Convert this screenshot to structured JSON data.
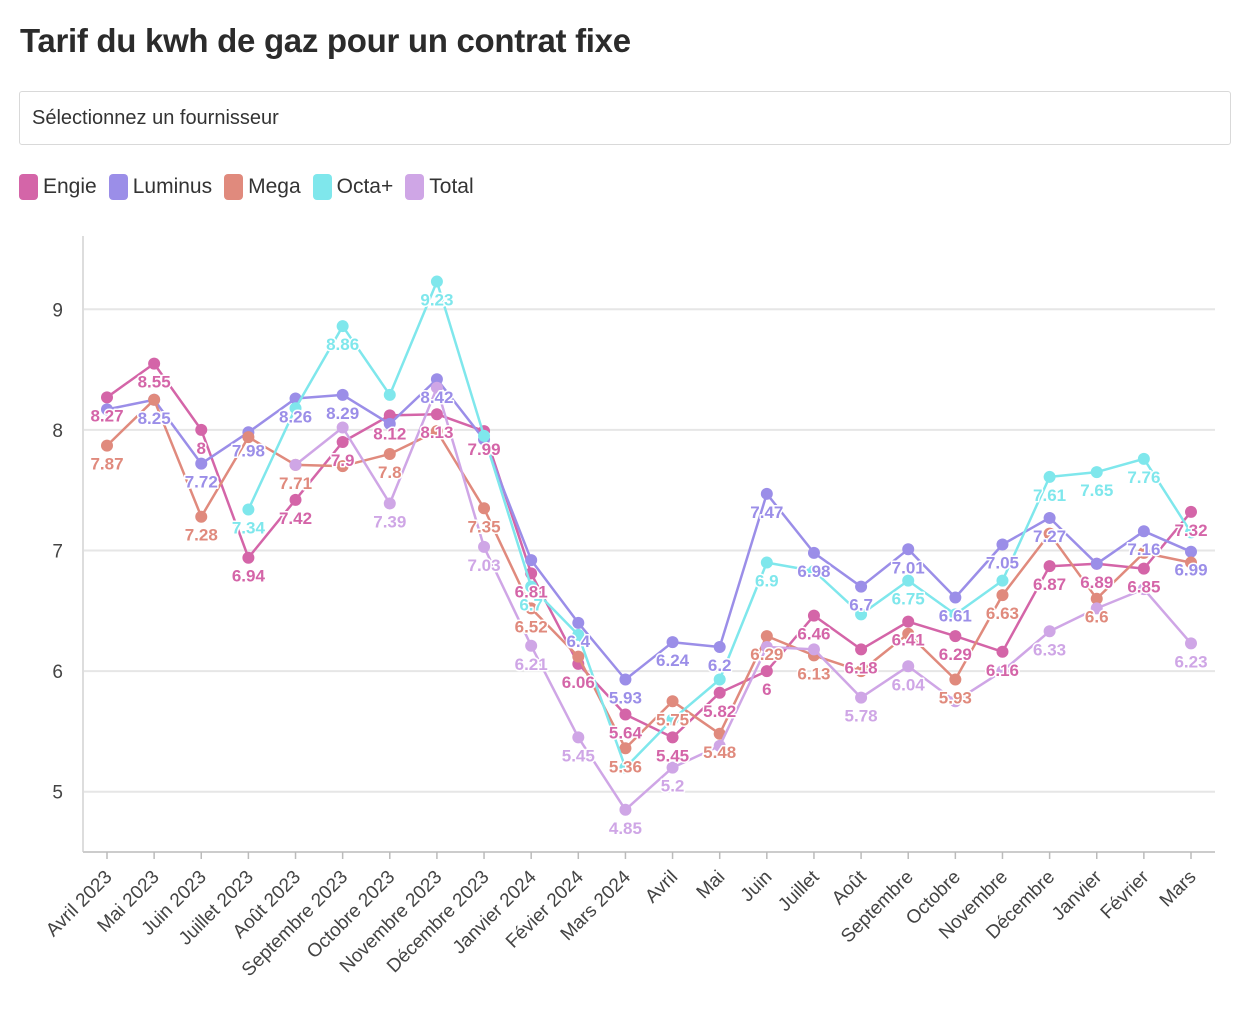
{
  "title": "Tarif du kwh de gaz pour un contrat fixe",
  "select": {
    "placeholder": "Sélectionnez un fournisseur"
  },
  "chart_data": {
    "type": "line",
    "title": "Tarif du kwh de gaz pour un contrat fixe",
    "xlabel": "",
    "ylabel": "",
    "ylim": [
      4.5,
      9.5
    ],
    "yticks": [
      5,
      6,
      7,
      8,
      9
    ],
    "grid": true,
    "legend_position": "top-left",
    "categories": [
      "Avril 2023",
      "Mai 2023",
      "Juin 2023",
      "Juillet 2023",
      "Août 2023",
      "Septembre 2023",
      "Octobre 2023",
      "Novembre 2023",
      "Décembre 2023",
      "Janvier 2024",
      "Févier 2024",
      "Mars 2024",
      "Avril",
      "Mai",
      "Juin",
      "Juillet",
      "Août",
      "Septembre",
      "Octobre",
      "Novembre",
      "Décembre",
      "Janvier",
      "Février",
      "Mars"
    ],
    "series": [
      {
        "name": "Engie",
        "color": "#d465a8",
        "values": [
          8.27,
          8.55,
          8,
          6.94,
          7.42,
          7.9,
          8.12,
          8.13,
          7.99,
          6.81,
          6.06,
          5.64,
          5.45,
          5.82,
          6,
          6.46,
          6.18,
          6.41,
          6.29,
          6.16,
          6.87,
          6.89,
          6.85,
          7.32
        ]
      },
      {
        "name": "Luminus",
        "color": "#9b8ee8",
        "values": [
          8.17,
          8.25,
          7.72,
          7.98,
          8.26,
          8.29,
          8.05,
          8.42,
          7.92,
          6.92,
          6.4,
          5.93,
          6.24,
          6.2,
          7.47,
          6.98,
          6.7,
          7.01,
          6.61,
          7.05,
          7.27,
          6.89,
          7.16,
          6.99
        ]
      },
      {
        "name": "Mega",
        "color": "#e08a7d",
        "values": [
          7.87,
          8.25,
          7.28,
          7.94,
          7.71,
          7.7,
          7.8,
          7.99,
          7.35,
          6.52,
          6.12,
          5.36,
          5.75,
          5.48,
          6.29,
          6.13,
          6.0,
          6.31,
          5.93,
          6.63,
          7.14,
          6.6,
          6.98,
          6.9
        ]
      },
      {
        "name": "Octa+",
        "color": "#7fe7ec",
        "values": [
          null,
          null,
          null,
          7.34,
          8.18,
          8.86,
          8.29,
          9.23,
          7.95,
          6.7,
          6.3,
          5.2,
          5.6,
          5.93,
          6.9,
          6.83,
          6.47,
          6.75,
          6.47,
          6.75,
          7.61,
          7.65,
          7.76,
          7.15
        ]
      },
      {
        "name": "Total",
        "color": "#cfa6e6",
        "values": [
          null,
          null,
          null,
          null,
          7.71,
          8.02,
          7.39,
          8.35,
          7.03,
          6.21,
          5.45,
          4.85,
          5.2,
          5.38,
          6.2,
          6.18,
          5.78,
          6.04,
          5.75,
          6.0,
          6.33,
          6.52,
          6.68,
          6.23
        ]
      }
    ],
    "data_labels": [
      {
        "text": "8.27",
        "series": "Engie",
        "index": 0,
        "value": 8.27
      },
      {
        "text": "8.55",
        "series": "Engie",
        "index": 1,
        "value": 8.55
      },
      {
        "text": "8",
        "series": "Engie",
        "index": 2,
        "value": 8
      },
      {
        "text": "6.94",
        "series": "Engie",
        "index": 3,
        "value": 6.94
      },
      {
        "text": "7.42",
        "series": "Engie",
        "index": 4,
        "value": 7.42
      },
      {
        "text": "7.9",
        "series": "Engie",
        "index": 5,
        "value": 7.9
      },
      {
        "text": "8.12",
        "series": "Engie",
        "index": 6,
        "value": 8.12
      },
      {
        "text": "8.13",
        "series": "Engie",
        "index": 7,
        "value": 8.13
      },
      {
        "text": "7.99",
        "series": "Engie",
        "index": 8,
        "value": 7.99
      },
      {
        "text": "6.81",
        "series": "Engie",
        "index": 9,
        "value": 6.81
      },
      {
        "text": "6.06",
        "series": "Engie",
        "index": 10,
        "value": 6.06
      },
      {
        "text": "5.64",
        "series": "Engie",
        "index": 11,
        "value": 5.64
      },
      {
        "text": "5.45",
        "series": "Engie",
        "index": 12,
        "value": 5.45
      },
      {
        "text": "5.82",
        "series": "Engie",
        "index": 13,
        "value": 5.82
      },
      {
        "text": "6",
        "series": "Engie",
        "index": 14,
        "value": 6
      },
      {
        "text": "6.46",
        "series": "Engie",
        "index": 15,
        "value": 6.46
      },
      {
        "text": "6.18",
        "series": "Engie",
        "index": 16,
        "value": 6.18
      },
      {
        "text": "6.41",
        "series": "Engie",
        "index": 17,
        "value": 6.41
      },
      {
        "text": "6.29",
        "series": "Engie",
        "index": 18,
        "value": 6.29
      },
      {
        "text": "6.16",
        "series": "Engie",
        "index": 19,
        "value": 6.16
      },
      {
        "text": "6.87",
        "series": "Engie",
        "index": 20,
        "value": 6.87
      },
      {
        "text": "6.89",
        "series": "Engie",
        "index": 21,
        "value": 6.89
      },
      {
        "text": "6.85",
        "series": "Engie",
        "index": 22,
        "value": 6.85
      },
      {
        "text": "7.32",
        "series": "Engie",
        "index": 23,
        "value": 7.32
      },
      {
        "text": "8.25",
        "series": "Luminus",
        "index": 1,
        "value": 8.25
      },
      {
        "text": "7.72",
        "series": "Luminus",
        "index": 2,
        "value": 7.72
      },
      {
        "text": "7.98",
        "series": "Luminus",
        "index": 3,
        "value": 7.98
      },
      {
        "text": "8.26",
        "series": "Luminus",
        "index": 4,
        "value": 8.26
      },
      {
        "text": "8.29",
        "series": "Luminus",
        "index": 5,
        "value": 8.29
      },
      {
        "text": "8.42",
        "series": "Luminus",
        "index": 7,
        "value": 8.42
      },
      {
        "text": "6.4",
        "series": "Luminus",
        "index": 10,
        "value": 6.4
      },
      {
        "text": "5.93",
        "series": "Luminus",
        "index": 11,
        "value": 5.93
      },
      {
        "text": "6.24",
        "series": "Luminus",
        "index": 12,
        "value": 6.24
      },
      {
        "text": "6.2",
        "series": "Luminus",
        "index": 13,
        "value": 6.2
      },
      {
        "text": "7.47",
        "series": "Luminus",
        "index": 14,
        "value": 7.47
      },
      {
        "text": "6.98",
        "series": "Luminus",
        "index": 15,
        "value": 6.98
      },
      {
        "text": "6.7",
        "series": "Luminus",
        "index": 16,
        "value": 6.7
      },
      {
        "text": "7.01",
        "series": "Luminus",
        "index": 17,
        "value": 7.01
      },
      {
        "text": "6.61",
        "series": "Luminus",
        "index": 18,
        "value": 6.61
      },
      {
        "text": "7.05",
        "series": "Luminus",
        "index": 19,
        "value": 7.05
      },
      {
        "text": "7.27",
        "series": "Luminus",
        "index": 20,
        "value": 7.27
      },
      {
        "text": "7.16",
        "series": "Luminus",
        "index": 22,
        "value": 7.16
      },
      {
        "text": "6.99",
        "series": "Luminus",
        "index": 23,
        "value": 6.99
      },
      {
        "text": "7.87",
        "series": "Mega",
        "index": 0,
        "value": 7.87
      },
      {
        "text": "7.28",
        "series": "Mega",
        "index": 2,
        "value": 7.28
      },
      {
        "text": "7.71",
        "series": "Mega",
        "index": 4,
        "value": 7.71
      },
      {
        "text": "7.8",
        "series": "Mega",
        "index": 6,
        "value": 7.8
      },
      {
        "text": "7.35",
        "series": "Mega",
        "index": 8,
        "value": 7.35
      },
      {
        "text": "6.52",
        "series": "Mega",
        "index": 9,
        "value": 6.52
      },
      {
        "text": "5.36",
        "series": "Mega",
        "index": 11,
        "value": 5.36
      },
      {
        "text": "5.75",
        "series": "Mega",
        "index": 12,
        "value": 5.75
      },
      {
        "text": "5.48",
        "series": "Mega",
        "index": 13,
        "value": 5.48
      },
      {
        "text": "6.29",
        "series": "Mega",
        "index": 14,
        "value": 6.29
      },
      {
        "text": "6.13",
        "series": "Mega",
        "index": 15,
        "value": 6.13
      },
      {
        "text": "5.93",
        "series": "Mega",
        "index": 18,
        "value": 5.93
      },
      {
        "text": "6.63",
        "series": "Mega",
        "index": 19,
        "value": 6.63
      },
      {
        "text": "6.6",
        "series": "Mega",
        "index": 21,
        "value": 6.6
      },
      {
        "text": "7.34",
        "series": "Octa+",
        "index": 3,
        "value": 7.34
      },
      {
        "text": "8.86",
        "series": "Octa+",
        "index": 5,
        "value": 8.86
      },
      {
        "text": "9.23",
        "series": "Octa+",
        "index": 7,
        "value": 9.23
      },
      {
        "text": "6.7",
        "series": "Octa+",
        "index": 9,
        "value": 6.7
      },
      {
        "text": "6.9",
        "series": "Octa+",
        "index": 14,
        "value": 6.9
      },
      {
        "text": "6.75",
        "series": "Octa+",
        "index": 17,
        "value": 6.75
      },
      {
        "text": "7.61",
        "series": "Octa+",
        "index": 20,
        "value": 7.61
      },
      {
        "text": "7.65",
        "series": "Octa+",
        "index": 21,
        "value": 7.65
      },
      {
        "text": "7.76",
        "series": "Octa+",
        "index": 22,
        "value": 7.76
      },
      {
        "text": "7.39",
        "series": "Total",
        "index": 6,
        "value": 7.39
      },
      {
        "text": "7.03",
        "series": "Total",
        "index": 8,
        "value": 7.03
      },
      {
        "text": "6.21",
        "series": "Total",
        "index": 9,
        "value": 6.21
      },
      {
        "text": "5.45",
        "series": "Total",
        "index": 10,
        "value": 5.45
      },
      {
        "text": "4.85",
        "series": "Total",
        "index": 11,
        "value": 4.85
      },
      {
        "text": "5.2",
        "series": "Total",
        "index": 12,
        "value": 5.2
      },
      {
        "text": "5.78",
        "series": "Total",
        "index": 16,
        "value": 5.78
      },
      {
        "text": "6.04",
        "series": "Total",
        "index": 17,
        "value": 6.04
      },
      {
        "text": "6.33",
        "series": "Total",
        "index": 20,
        "value": 6.33
      },
      {
        "text": "6.23",
        "series": "Total",
        "index": 23,
        "value": 6.23
      }
    ]
  }
}
